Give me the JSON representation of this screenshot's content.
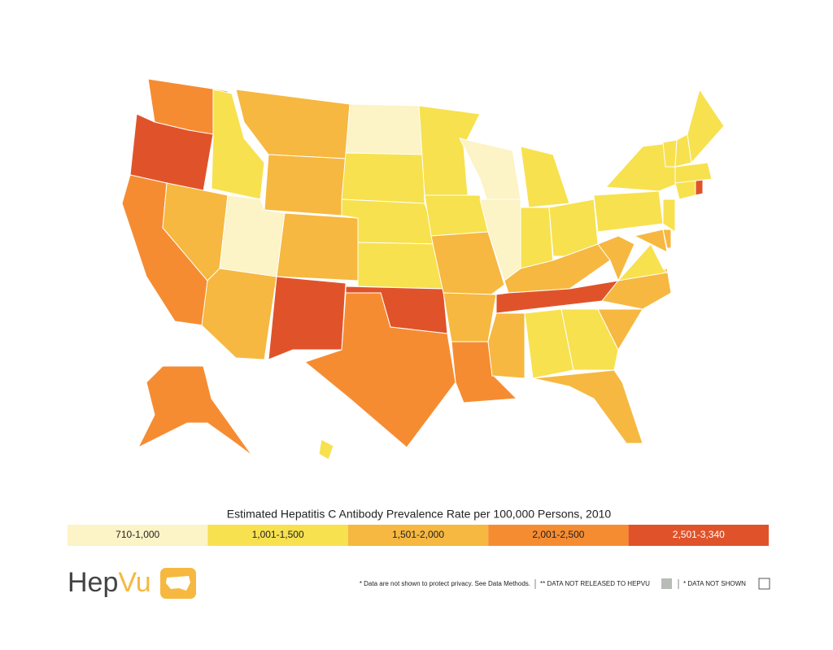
{
  "map": {
    "legend": {
      "title": "Estimated Hepatitis C Antibody Prevalence Rate per 100,000 Persons, 2010",
      "bins": [
        {
          "label": "710-1,000",
          "color": "#fcf3c6"
        },
        {
          "label": "1,001-1,500",
          "color": "#f7e14f"
        },
        {
          "label": "1,501-2,000",
          "color": "#f6b840"
        },
        {
          "label": "2,001-2,500",
          "color": "#f68c31"
        },
        {
          "label": "2,501-3,340",
          "color": "#e0532a"
        }
      ]
    },
    "regions": [
      3,
      4,
      3,
      2,
      1,
      2,
      2,
      0,
      2,
      2,
      4,
      0,
      1,
      1,
      1,
      4,
      3,
      1,
      1,
      2,
      2,
      3,
      0,
      0,
      1,
      1,
      1,
      2,
      4,
      2,
      1,
      1,
      2,
      2,
      2,
      1,
      2,
      1,
      1,
      2,
      2,
      1,
      1,
      4,
      1,
      1,
      1,
      1,
      3,
      1
    ]
  },
  "logo": {
    "part_1": "Hep",
    "part_2": "Vu"
  },
  "footnote": {
    "privacy": "* Data are not shown to protect privacy. See Data Methods.",
    "not_released": "** DATA NOT RELEASED TO HEPVU",
    "not_shown": "* DATA NOT SHOWN"
  }
}
